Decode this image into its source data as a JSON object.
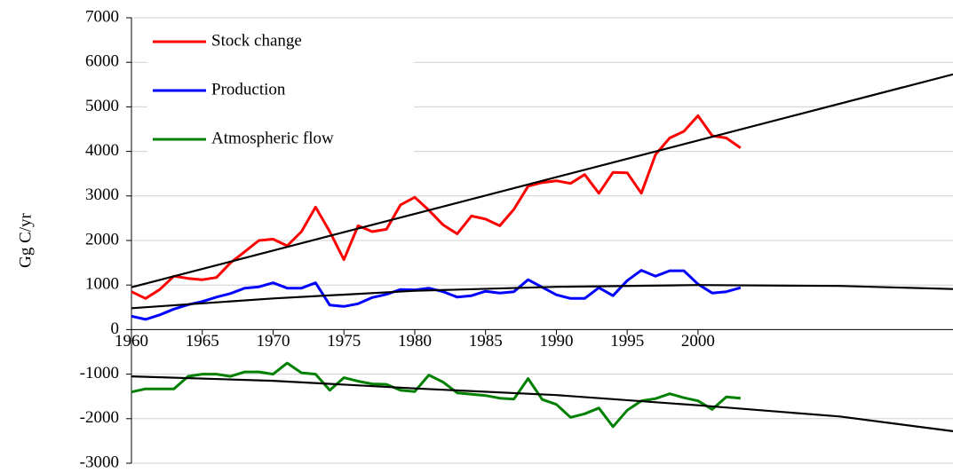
{
  "chart_data": {
    "type": "line",
    "y_label": "Gg C/yr",
    "x": [
      1960,
      1961,
      1962,
      1963,
      1964,
      1965,
      1966,
      1967,
      1968,
      1969,
      1970,
      1971,
      1972,
      1973,
      1974,
      1975,
      1976,
      1977,
      1978,
      1979,
      1980,
      1981,
      1982,
      1983,
      1984,
      1985,
      1986,
      1987,
      1988,
      1989,
      1990,
      1991,
      1992,
      1993,
      1994,
      1995,
      1996,
      1997,
      1998,
      1999,
      2000,
      2001,
      2002,
      2003
    ],
    "series": [
      {
        "name": "Stock change",
        "color": "#ff0000",
        "values": [
          850,
          700,
          900,
          1200,
          1150,
          1120,
          1170,
          1500,
          1750,
          2000,
          2030,
          1880,
          2200,
          2750,
          2200,
          1570,
          2330,
          2200,
          2250,
          2800,
          2970,
          2680,
          2350,
          2150,
          2550,
          2480,
          2330,
          2700,
          3220,
          3300,
          3340,
          3280,
          3480,
          3060,
          3530,
          3520,
          3060,
          3930,
          4300,
          4450,
          4800,
          4350,
          4300,
          4080
        ]
      },
      {
        "name": "Production",
        "color": "#0000ff",
        "values": [
          300,
          230,
          330,
          460,
          560,
          630,
          730,
          810,
          930,
          960,
          1050,
          930,
          930,
          1050,
          550,
          520,
          580,
          720,
          790,
          900,
          890,
          930,
          850,
          730,
          760,
          860,
          820,
          850,
          1120,
          950,
          780,
          700,
          700,
          940,
          760,
          1100,
          1330,
          1200,
          1320,
          1320,
          1020,
          820,
          850,
          940
        ]
      },
      {
        "name": "Atmospheric flow",
        "color": "#008000",
        "values": [
          -1400,
          -1330,
          -1330,
          -1330,
          -1050,
          -1000,
          -1000,
          -1050,
          -950,
          -950,
          -1000,
          -750,
          -970,
          -1000,
          -1360,
          -1080,
          -1160,
          -1220,
          -1230,
          -1360,
          -1390,
          -1020,
          -1180,
          -1420,
          -1450,
          -1480,
          -1540,
          -1560,
          -1100,
          -1570,
          -1680,
          -1970,
          -1890,
          -1760,
          -2180,
          -1810,
          -1600,
          -1550,
          -1440,
          -1530,
          -1600,
          -1790,
          -1510,
          -1540
        ]
      },
      {
        "color": "#000000",
        "x": [
          1960,
          2018
        ],
        "values": [
          950,
          5730
        ]
      },
      {
        "color": "#000000",
        "x": [
          1960,
          1970,
          1980,
          1990,
          2000,
          2010,
          2018
        ],
        "values": [
          480,
          700,
          870,
          960,
          1000,
          980,
          910
        ]
      },
      {
        "color": "#000000",
        "x": [
          1960,
          1970,
          1980,
          1990,
          2000,
          2010,
          2018
        ],
        "values": [
          -1050,
          -1150,
          -1320,
          -1470,
          -1700,
          -1950,
          -2280
        ]
      }
    ],
    "xlim": [
      1960,
      2018
    ],
    "xticks": [
      1960,
      1965,
      1970,
      1975,
      1980,
      1985,
      1990,
      1995,
      2000
    ],
    "ylim": [
      -3000,
      7000
    ],
    "yticks": [
      -3000,
      -2000,
      -1000,
      0,
      1000,
      2000,
      3000,
      4000,
      5000,
      6000,
      7000
    ],
    "grid": true,
    "legend": "upper left"
  }
}
